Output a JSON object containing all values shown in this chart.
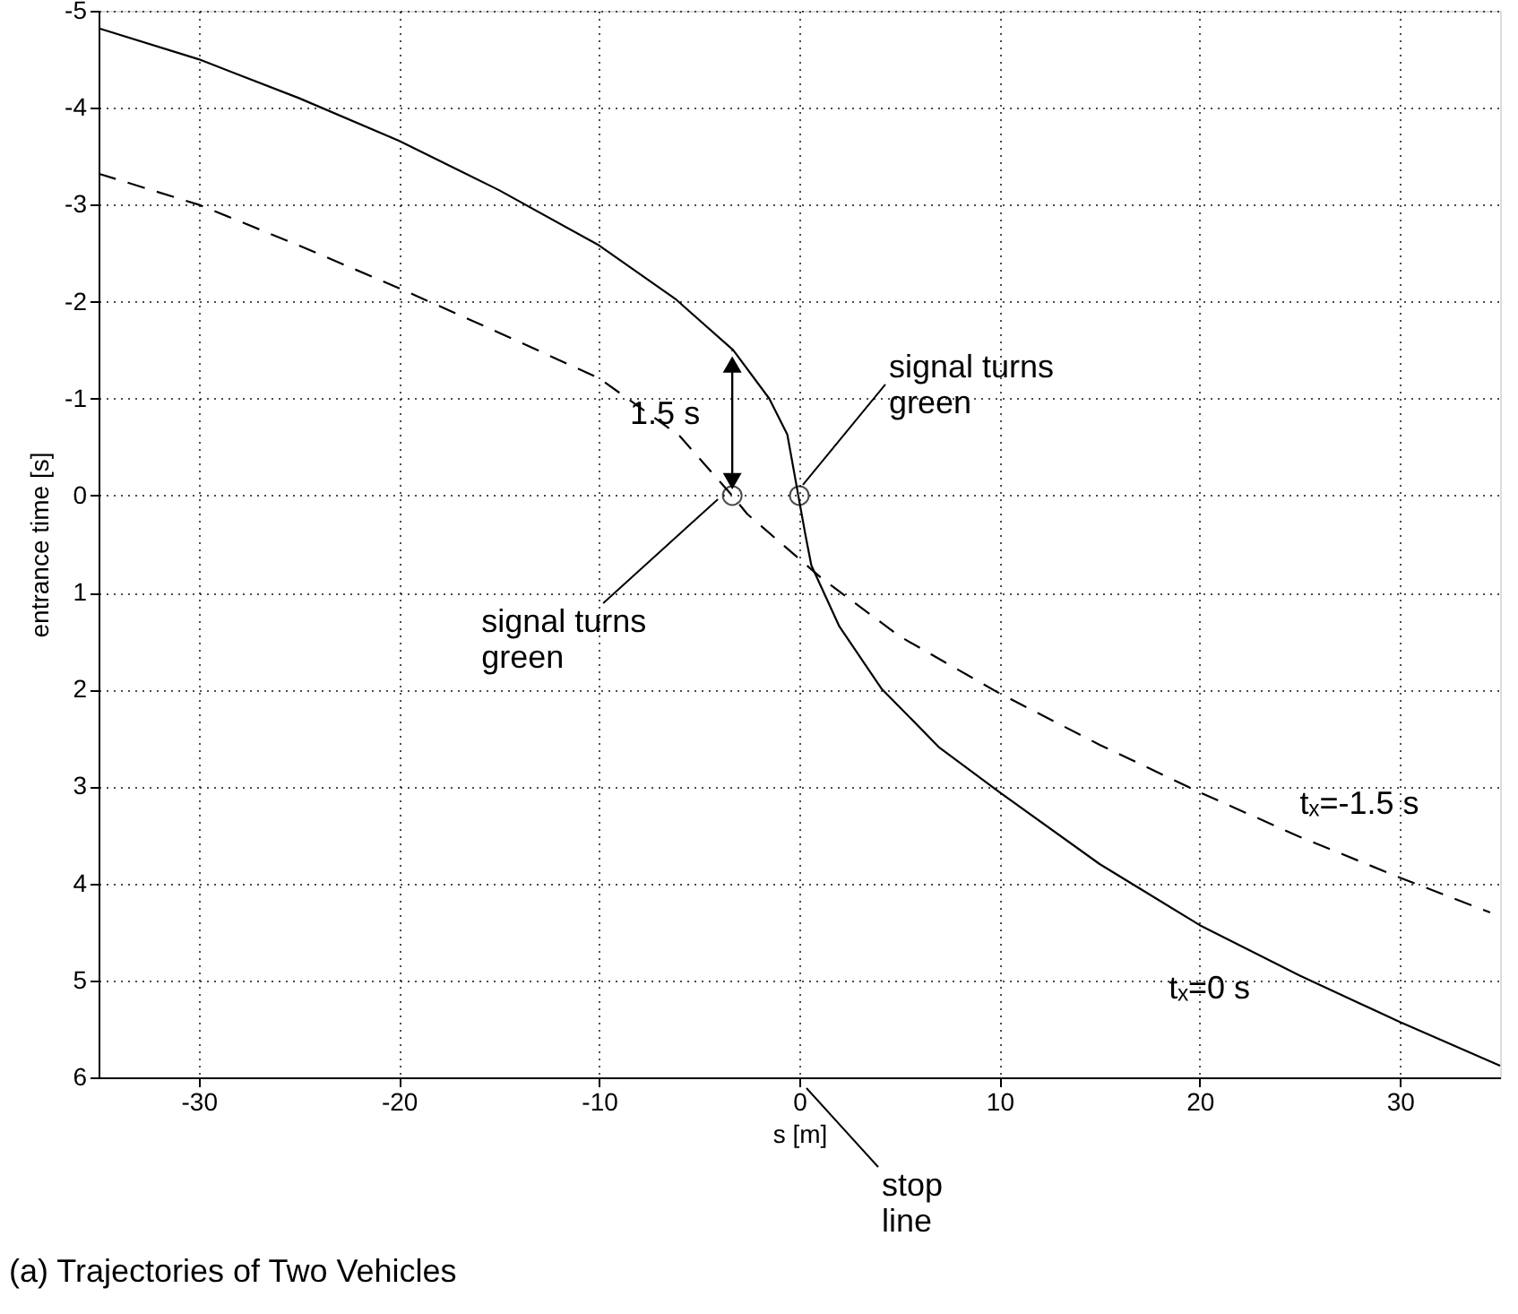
{
  "chart_data": {
    "type": "line",
    "xlabel": "s [m]",
    "ylabel": "entrance time [s]",
    "xlim": [
      -35,
      35
    ],
    "xticks": [
      -30,
      -20,
      -10,
      0,
      10,
      20,
      30
    ],
    "ylim": [
      6,
      -5
    ],
    "yticks": [
      -5,
      -4,
      -3,
      -2,
      -1,
      0,
      1,
      2,
      3,
      4,
      5,
      6
    ],
    "grid": true,
    "series": [
      {
        "color": "#000000",
        "line_style": "solid",
        "x": [
          -35,
          -30,
          -25,
          -20,
          -15,
          -10,
          -6.2,
          -3.3,
          -1.5,
          -0.6,
          -0.05,
          0.3,
          0.6,
          2,
          4.1,
          7,
          10,
          15,
          20,
          25,
          30,
          35
        ],
        "values": [
          -4.82,
          -4.5,
          -4.1,
          -3.66,
          -3.15,
          -2.58,
          -2.03,
          -1.5,
          -1.0,
          -0.63,
          0,
          0.4,
          0.72,
          1.35,
          1.99,
          2.6,
          3.06,
          3.8,
          4.43,
          4.95,
          5.43,
          5.88
        ]
      },
      {
        "color": "#000000",
        "line_style": "dashed",
        "x": [
          -35,
          -30,
          -25,
          -20,
          -15,
          -10,
          -6,
          -3.35,
          -2.6,
          1.1,
          5,
          10,
          15,
          20,
          25,
          30,
          34.5
        ],
        "values": [
          -3.32,
          -3.0,
          -2.58,
          -2.14,
          -1.68,
          -1.21,
          -0.62,
          0,
          0.19,
          0.85,
          1.45,
          2.04,
          2.57,
          3.06,
          3.52,
          3.94,
          4.3
        ]
      },
      {
        "type": "scatter",
        "color": "#000000",
        "marker": "circle",
        "x": [
          -3.35,
          0
        ],
        "values": [
          0,
          0
        ]
      }
    ],
    "annotations": [
      {
        "text": "signal turns\ngreen",
        "x": -3.35,
        "y": 0
      },
      {
        "text": "signal turns\ngreen",
        "x": 0,
        "y": 0
      },
      {
        "text": "1.5 s",
        "x": -3.35,
        "y": -1.5
      },
      {
        "text": "tₓ=-1.5 s",
        "x": 25,
        "y": 3.52
      },
      {
        "text": "tₓ=0 s",
        "x": 24,
        "y": 4.95
      },
      "stop\nline",
      "(a) Trajectories of Two Vehicles"
    ]
  }
}
